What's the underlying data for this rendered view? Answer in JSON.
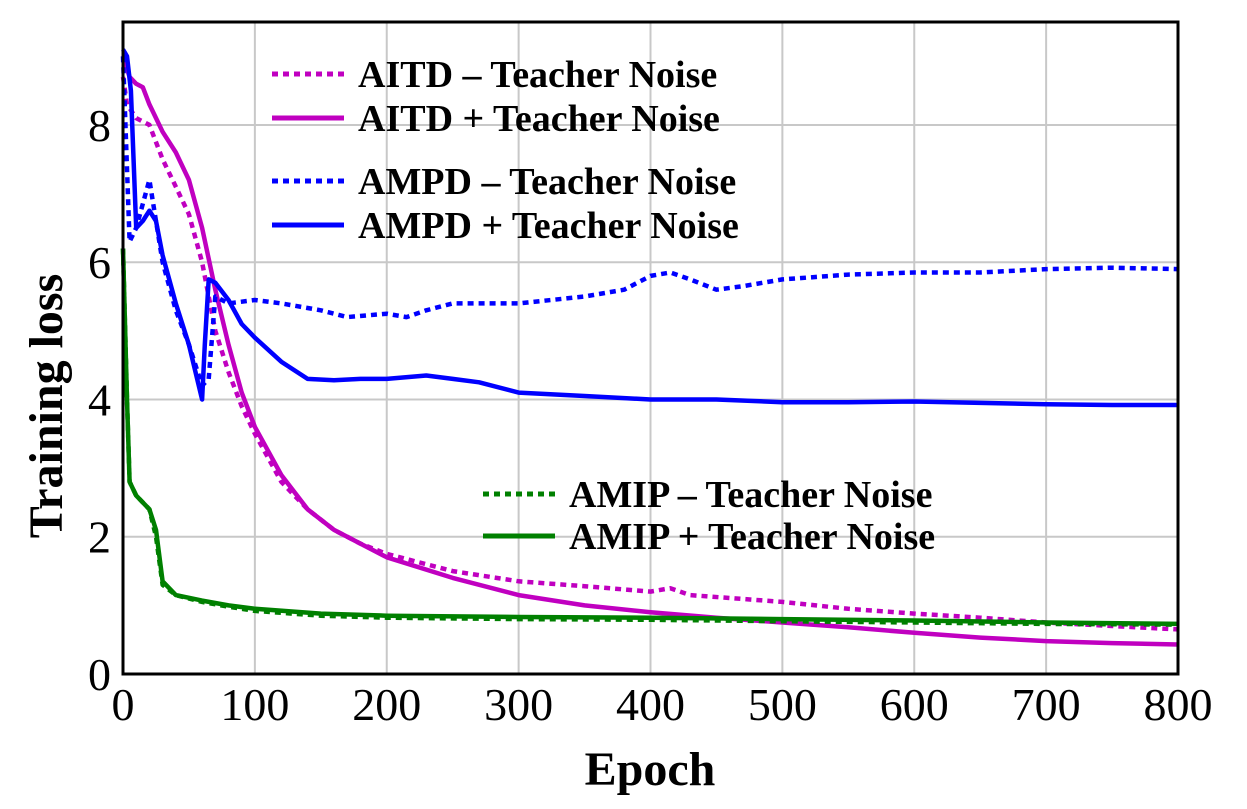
{
  "chart_data": {
    "type": "line",
    "xlabel": "Epoch",
    "ylabel": "Training loss",
    "xlim": [
      0,
      800
    ],
    "ylim": [
      0,
      9.5
    ],
    "xticks": [
      0,
      100,
      200,
      300,
      400,
      500,
      600,
      700,
      800
    ],
    "yticks": [
      0,
      2,
      4,
      6,
      8
    ],
    "grid": true,
    "legend_groups": [
      {
        "placement": "top-center",
        "series": [
          0,
          1
        ]
      },
      {
        "placement": "top-center",
        "series": [
          2,
          3
        ]
      },
      {
        "placement": "bottom-center",
        "series": [
          4,
          5
        ]
      }
    ],
    "series": [
      {
        "name": "AITD – Teacher Noise",
        "color": "#c000c0",
        "style": "dotted",
        "x": [
          0,
          3,
          10,
          20,
          30,
          40,
          50,
          60,
          70,
          80,
          90,
          100,
          120,
          140,
          160,
          180,
          200,
          250,
          300,
          350,
          400,
          415,
          430,
          500,
          550,
          600,
          650,
          700,
          750,
          800
        ],
        "y": [
          8.7,
          8.3,
          8.1,
          8.0,
          7.5,
          7.1,
          6.7,
          6.0,
          5.0,
          4.4,
          3.9,
          3.5,
          2.8,
          2.4,
          2.1,
          1.9,
          1.75,
          1.5,
          1.35,
          1.28,
          1.2,
          1.25,
          1.15,
          1.05,
          0.95,
          0.88,
          0.82,
          0.75,
          0.7,
          0.65
        ]
      },
      {
        "name": "AITD + Teacher Noise",
        "color": "#c000c0",
        "style": "solid",
        "x": [
          0,
          5,
          10,
          15,
          20,
          30,
          40,
          50,
          60,
          70,
          80,
          90,
          100,
          120,
          140,
          160,
          180,
          200,
          250,
          300,
          350,
          400,
          450,
          500,
          550,
          600,
          650,
          700,
          750,
          800
        ],
        "y": [
          9.0,
          8.7,
          8.6,
          8.55,
          8.3,
          7.9,
          7.6,
          7.2,
          6.5,
          5.6,
          4.8,
          4.1,
          3.6,
          2.9,
          2.4,
          2.1,
          1.9,
          1.7,
          1.4,
          1.15,
          1.0,
          0.9,
          0.82,
          0.75,
          0.68,
          0.6,
          0.53,
          0.48,
          0.45,
          0.43
        ]
      },
      {
        "name": "AMPD – Teacher Noise",
        "color": "#0000ff",
        "style": "dotted",
        "x": [
          0,
          5,
          10,
          20,
          30,
          40,
          50,
          60,
          65,
          70,
          80,
          100,
          120,
          150,
          170,
          200,
          215,
          230,
          250,
          300,
          350,
          380,
          400,
          415,
          430,
          450,
          470,
          500,
          550,
          600,
          650,
          700,
          750,
          800
        ],
        "y": [
          9.0,
          6.3,
          6.5,
          7.2,
          6.0,
          5.3,
          4.8,
          4.2,
          4.3,
          5.5,
          5.4,
          5.45,
          5.4,
          5.3,
          5.2,
          5.25,
          5.2,
          5.3,
          5.4,
          5.4,
          5.5,
          5.6,
          5.8,
          5.85,
          5.75,
          5.6,
          5.65,
          5.75,
          5.82,
          5.85,
          5.85,
          5.9,
          5.92,
          5.9
        ]
      },
      {
        "name": "AMPD + Teacher Noise",
        "color": "#0000ff",
        "style": "solid",
        "x": [
          0,
          3,
          6,
          10,
          15,
          20,
          25,
          30,
          40,
          50,
          60,
          62,
          65,
          70,
          80,
          90,
          100,
          120,
          140,
          160,
          180,
          200,
          230,
          250,
          270,
          300,
          350,
          400,
          450,
          500,
          550,
          600,
          650,
          700,
          750,
          800
        ],
        "y": [
          9.1,
          9.0,
          8.5,
          6.5,
          6.6,
          6.75,
          6.6,
          6.1,
          5.4,
          4.8,
          4.0,
          4.8,
          5.75,
          5.7,
          5.45,
          5.1,
          4.9,
          4.55,
          4.3,
          4.28,
          4.3,
          4.3,
          4.35,
          4.3,
          4.25,
          4.1,
          4.05,
          4.0,
          4.0,
          3.96,
          3.96,
          3.97,
          3.95,
          3.93,
          3.92,
          3.92
        ]
      },
      {
        "name": "AMIP – Teacher Noise",
        "color": "#008000",
        "style": "dotted",
        "x": [
          0,
          3,
          5,
          10,
          15,
          20,
          25,
          30,
          40,
          60,
          80,
          100,
          150,
          200,
          300,
          400,
          500,
          600,
          700,
          800
        ],
        "y": [
          6.2,
          4.0,
          2.8,
          2.6,
          2.5,
          2.4,
          2.0,
          1.3,
          1.15,
          1.05,
          0.98,
          0.92,
          0.85,
          0.82,
          0.8,
          0.79,
          0.77,
          0.75,
          0.73,
          0.72
        ]
      },
      {
        "name": "AMIP + Teacher Noise",
        "color": "#008000",
        "style": "solid",
        "x": [
          0,
          3,
          5,
          10,
          15,
          20,
          25,
          30,
          40,
          60,
          80,
          100,
          150,
          200,
          300,
          400,
          500,
          600,
          700,
          800
        ],
        "y": [
          6.2,
          4.0,
          2.8,
          2.6,
          2.5,
          2.4,
          2.1,
          1.35,
          1.15,
          1.07,
          1.0,
          0.95,
          0.88,
          0.85,
          0.83,
          0.82,
          0.8,
          0.78,
          0.75,
          0.73
        ]
      }
    ]
  }
}
